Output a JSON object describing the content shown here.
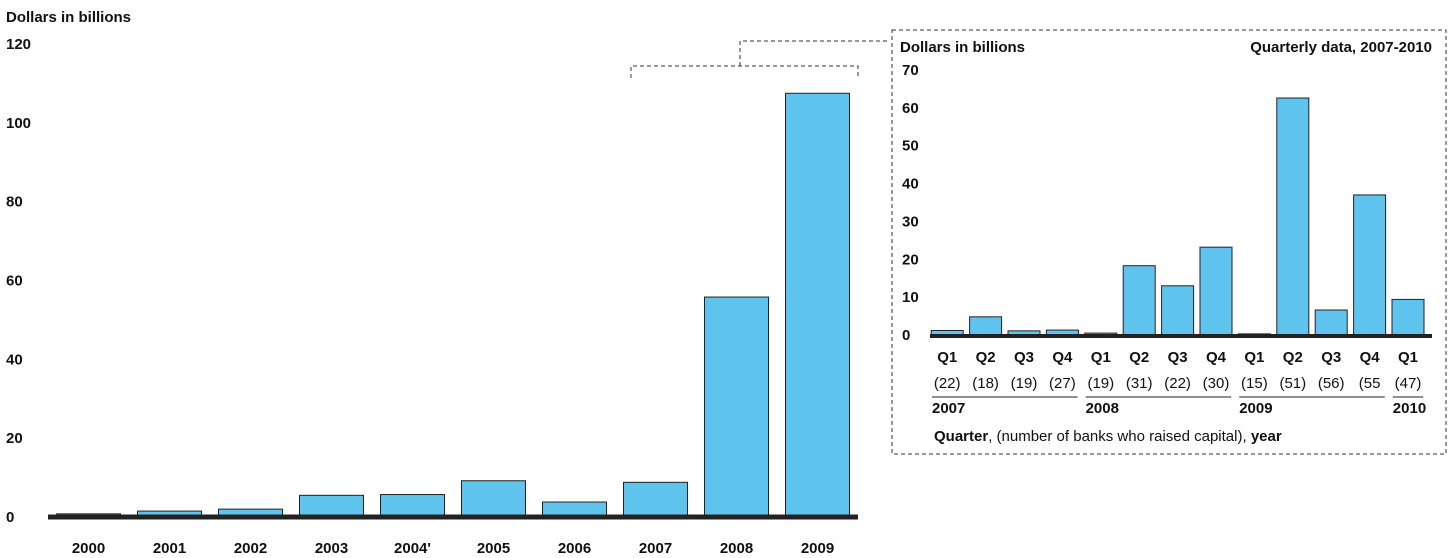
{
  "chart_data": [
    {
      "type": "bar",
      "ylabel": "Dollars in billions",
      "ylim": [
        0,
        120
      ],
      "yticks": [
        "0",
        "20",
        "40",
        "60",
        "80",
        "100",
        "120"
      ],
      "categories": [
        "2000",
        "2001",
        "2002",
        "2003",
        "2004'",
        "2005",
        "2006",
        "2007",
        "2008",
        "2009"
      ],
      "values": [
        0.8,
        1.5,
        2.0,
        5.5,
        5.7,
        9.2,
        3.8,
        8.8,
        55.8,
        107.5
      ],
      "bar_color": "#5ec4ee"
    },
    {
      "type": "bar",
      "ylabel": "Dollars in billions",
      "subtitle": "Quarterly data, 2007-2010",
      "ylim": [
        0,
        70
      ],
      "yticks": [
        "0",
        "10",
        "20",
        "30",
        "40",
        "50",
        "60",
        "70"
      ],
      "categories": [
        "Q1",
        "Q2",
        "Q3",
        "Q4",
        "Q1",
        "Q2",
        "Q3",
        "Q4",
        "Q1",
        "Q2",
        "Q3",
        "Q4",
        "Q1"
      ],
      "bank_counts": [
        "(22)",
        "(18)",
        "(19)",
        "(27)",
        "(19)",
        "(31)",
        "(22)",
        "(30)",
        "(15)",
        "(51)",
        "(56)",
        "(55",
        "(47)"
      ],
      "years": [
        "2007",
        "2008",
        "2009",
        "2010"
      ],
      "values": [
        1.2,
        4.8,
        1.1,
        1.3,
        0.5,
        18.3,
        13.0,
        23.2,
        0.3,
        62.6,
        6.6,
        37.0,
        9.4
      ],
      "bar_color": "#5ec4ee",
      "xlabel": {
        "part1": "Quarter",
        "part2": ", (number of banks who raised capital), ",
        "part3": "year"
      }
    }
  ]
}
